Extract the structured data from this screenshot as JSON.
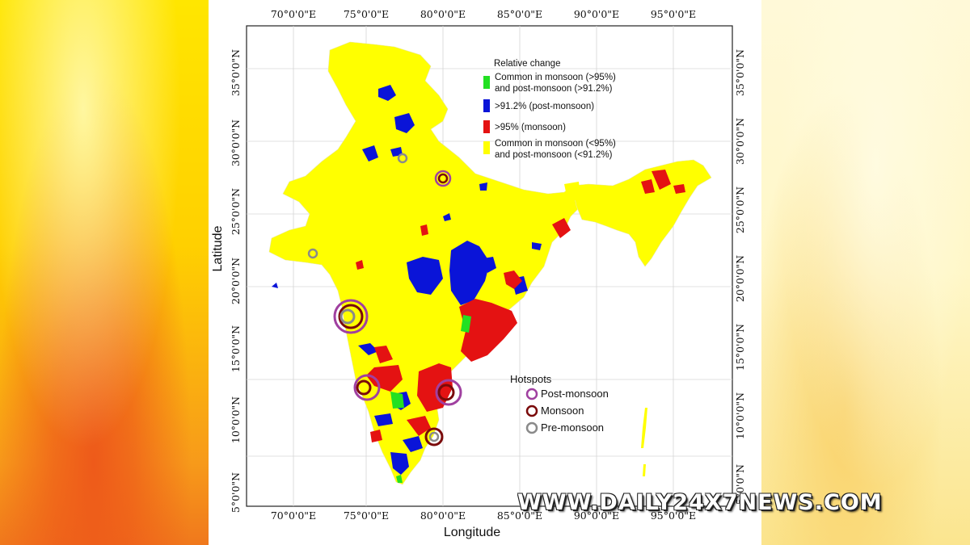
{
  "map": {
    "x_ticks": [
      "70°0'0\"E",
      "75°0'0\"E",
      "80°0'0\"E",
      "85°0'0\"E",
      "90°0'0\"E",
      "95°0'0\"E"
    ],
    "y_ticks": [
      "5°0'0\"N",
      "10°0'0\"N",
      "15°0'0\"N",
      "20°0'0\"N",
      "25°0'0\"N",
      "30°0'0\"N",
      "35°0'0\"N"
    ],
    "xlabel": "Longitude",
    "ylabel": "Latitude",
    "colors": {
      "common_both_high": "#22e022",
      "post_monsoon": "#0a14d8",
      "monsoon": "#e41212",
      "common_low": "#ffff00",
      "post_ring": "#a040a0",
      "mon_ring": "#7a0a0a",
      "pre_ring": "#8a8a8a"
    }
  },
  "legend": {
    "title": "Relative change",
    "items": [
      {
        "line1": "Common in monsoon (>95%)",
        "line2": "and post-monsoon (>91.2%)",
        "color": "#22e022"
      },
      {
        "line1": ">91.2% (post-monsoon)",
        "line2": "",
        "color": "#0a14d8"
      },
      {
        "line1": ">95% (monsoon)",
        "line2": "",
        "color": "#e41212"
      },
      {
        "line1": "Common in monsoon (<95%)",
        "line2": "and post-monsoon (<91.2%)",
        "color": "#ffff00"
      }
    ]
  },
  "hotspots": {
    "title": "Hotspots",
    "items": [
      {
        "label": "Post-monsoon",
        "color": "#a040a0"
      },
      {
        "label": "Monsoon",
        "color": "#7a0a0a"
      },
      {
        "label": "Pre-monsoon",
        "color": "#8a8a8a"
      }
    ]
  },
  "watermark": "WWW.DAILY24X7NEWS.COM"
}
